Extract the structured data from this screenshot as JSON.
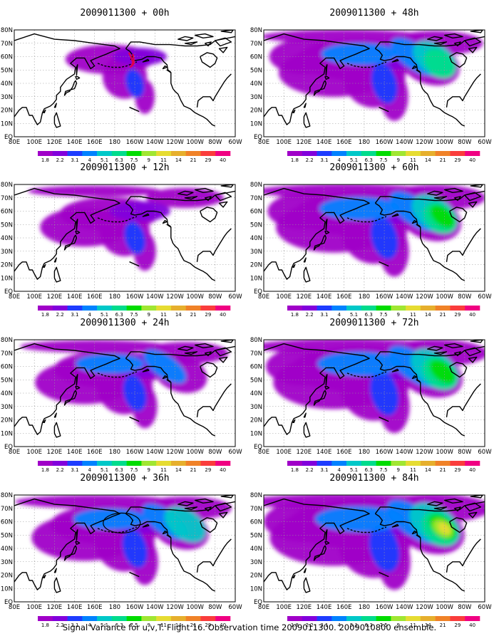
{
  "figure": {
    "caption": "Signal Variance for u,v,T. Flight 16. Observation time 2009011300. 2009010800 ensemble.",
    "lon_labels": [
      "80E",
      "100E",
      "120E",
      "140E",
      "160E",
      "180",
      "160W",
      "140W",
      "120W",
      "100W",
      "80W",
      "60W"
    ],
    "lat_labels": [
      "80N",
      "70N",
      "60N",
      "50N",
      "40N",
      "30N",
      "20N",
      "10N",
      "EQ"
    ],
    "colorbar": {
      "labels": [
        "1.8",
        "2.2",
        "3.1",
        "4",
        "5.1",
        "6.3",
        "7.5",
        "9",
        "11",
        "14",
        "21",
        "29",
        "40"
      ],
      "colors": [
        "#a000c8",
        "#8200dc",
        "#1e3cff",
        "#0082ff",
        "#00c8c8",
        "#00dc8c",
        "#00dc00",
        "#a0e632",
        "#e6dc32",
        "#e6af2d",
        "#f08228",
        "#fa3c3c",
        "#f00082"
      ]
    },
    "panels": [
      {
        "title": "2009011300 + 00h",
        "intensity": 0.15,
        "features": [
          "target-track-red"
        ]
      },
      {
        "title": "2009011300 + 12h",
        "intensity": 0.3,
        "features": []
      },
      {
        "title": "2009011300 + 24h",
        "intensity": 0.45,
        "features": []
      },
      {
        "title": "2009011300 + 36h",
        "intensity": 0.55,
        "features": [
          "verification-circle"
        ]
      },
      {
        "title": "2009011300 + 48h",
        "intensity": 0.62,
        "features": []
      },
      {
        "title": "2009011300 + 60h",
        "intensity": 0.7,
        "features": []
      },
      {
        "title": "2009011300 + 72h",
        "intensity": 0.78,
        "features": []
      },
      {
        "title": "2009011300 + 84h",
        "intensity": 0.88,
        "features": []
      }
    ]
  }
}
